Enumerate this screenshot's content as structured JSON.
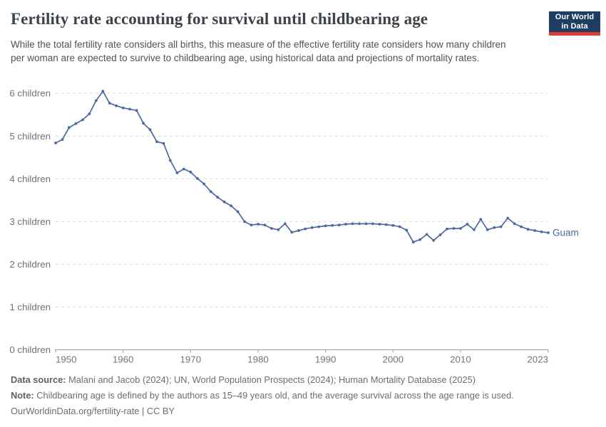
{
  "header": {
    "title": "Fertility rate accounting for survival until childbearing age",
    "subtitle": "While the total fertility rate considers all births, this measure of the effective fertility rate considers how many children per woman are expected to survive to childbearing age, using historical data and projections of mortality rates.",
    "logo": {
      "line1": "Our World",
      "line2": "in Data",
      "bg_color": "#1d3d63",
      "accent_color": "#d83c34"
    }
  },
  "chart_data": {
    "type": "line",
    "title": "Fertility rate accounting for survival until childbearing age",
    "xlabel": "",
    "ylabel": "",
    "xlim": [
      1950,
      2023
    ],
    "ylim": [
      0,
      6
    ],
    "grid": "horizontal-dashed",
    "legend_position": "end-of-line-label",
    "x_ticks": [
      {
        "value": 1950,
        "label": "1950"
      },
      {
        "value": 1960,
        "label": "1960"
      },
      {
        "value": 1970,
        "label": "1970"
      },
      {
        "value": 1980,
        "label": "1980"
      },
      {
        "value": 1990,
        "label": "1990"
      },
      {
        "value": 2000,
        "label": "2000"
      },
      {
        "value": 2010,
        "label": "2010"
      },
      {
        "value": 2023,
        "label": "2023"
      }
    ],
    "y_ticks": [
      {
        "value": 0,
        "label": "0 children"
      },
      {
        "value": 1,
        "label": "1 children"
      },
      {
        "value": 2,
        "label": "2 children"
      },
      {
        "value": 3,
        "label": "3 children"
      },
      {
        "value": 4,
        "label": "4 children"
      },
      {
        "value": 5,
        "label": "5 children"
      },
      {
        "value": 6,
        "label": "6 children"
      }
    ],
    "series": [
      {
        "name": "Guam",
        "color": "#4c6a9c",
        "x": [
          1950,
          1951,
          1952,
          1953,
          1954,
          1955,
          1956,
          1957,
          1958,
          1959,
          1960,
          1961,
          1962,
          1963,
          1964,
          1965,
          1966,
          1967,
          1968,
          1969,
          1970,
          1971,
          1972,
          1973,
          1974,
          1975,
          1976,
          1977,
          1978,
          1979,
          1980,
          1981,
          1982,
          1983,
          1984,
          1985,
          1986,
          1987,
          1988,
          1989,
          1990,
          1991,
          1992,
          1993,
          1994,
          1995,
          1996,
          1997,
          1998,
          1999,
          2000,
          2001,
          2002,
          2003,
          2004,
          2005,
          2006,
          2007,
          2008,
          2009,
          2010,
          2011,
          2012,
          2013,
          2014,
          2015,
          2016,
          2017,
          2018,
          2019,
          2020,
          2021,
          2022,
          2023
        ],
        "values": [
          4.84,
          4.92,
          5.2,
          5.29,
          5.38,
          5.52,
          5.83,
          6.05,
          5.77,
          5.71,
          5.66,
          5.63,
          5.6,
          5.3,
          5.15,
          4.87,
          4.83,
          4.43,
          4.14,
          4.23,
          4.16,
          4.01,
          3.88,
          3.7,
          3.57,
          3.46,
          3.37,
          3.23,
          3.0,
          2.92,
          2.94,
          2.92,
          2.84,
          2.81,
          2.95,
          2.75,
          2.79,
          2.83,
          2.86,
          2.88,
          2.9,
          2.91,
          2.92,
          2.94,
          2.95,
          2.95,
          2.95,
          2.95,
          2.94,
          2.93,
          2.91,
          2.88,
          2.8,
          2.52,
          2.58,
          2.7,
          2.56,
          2.69,
          2.83,
          2.84,
          2.84,
          2.94,
          2.81,
          3.05,
          2.81,
          2.86,
          2.88,
          3.08,
          2.95,
          2.88,
          2.82,
          2.79,
          2.76,
          2.74
        ]
      }
    ]
  },
  "footer": {
    "data_source_label": "Data source:",
    "data_source_text": " Malani and Jacob (2024); UN, World Population Prospects (2024); Human Mortality Database (2025)",
    "note_label": "Note:",
    "note_text": " Childbearing age is defined by the authors as 15–49 years old, and the average survival across the age range is used.",
    "url_text": "OurWorldinData.org/fertility-rate",
    "separator": " | ",
    "license_text": "CC BY"
  }
}
